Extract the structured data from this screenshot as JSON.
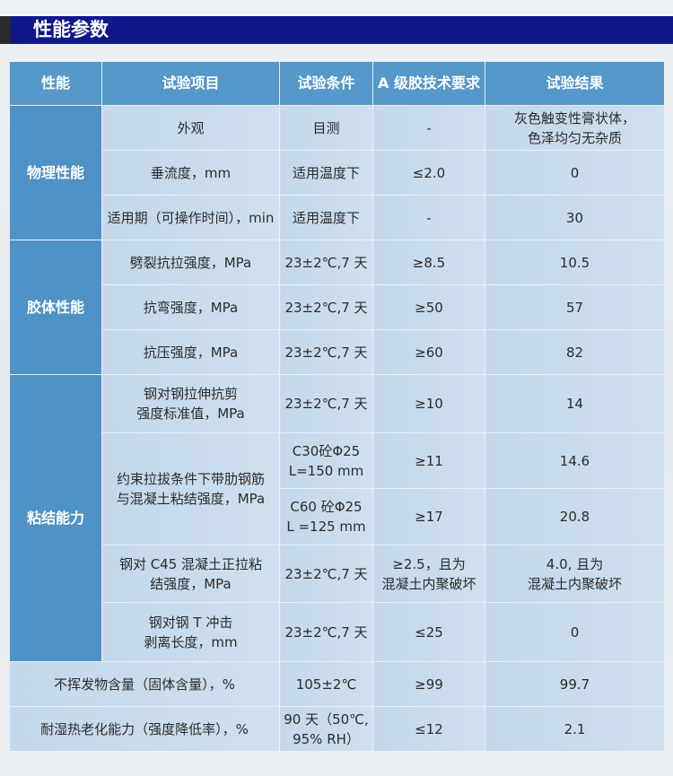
{
  "section_title": "性能参数",
  "headers": [
    "性能",
    "试验项目",
    "试验条件",
    "A 级胶技术要求",
    "试验结果"
  ],
  "groups": [
    {
      "category": "物理性能",
      "rows": [
        {
          "item": "外观",
          "condition": "目测",
          "requirement": "-",
          "result": "灰色触变性膏状体，\n色泽均匀无杂质"
        },
        {
          "item": "垂流度，mm",
          "condition": "适用温度下",
          "requirement": "≤2.0",
          "result": "0"
        },
        {
          "item": "适用期（可操作时间），min",
          "condition": "适用温度下",
          "requirement": "-",
          "result": "30"
        }
      ]
    },
    {
      "category": "胶体性能",
      "rows": [
        {
          "item": "劈裂抗拉强度，MPa",
          "condition": "23±2℃,7 天",
          "requirement": "≥8.5",
          "result": "10.5"
        },
        {
          "item": "抗弯强度，MPa",
          "condition": "23±2℃,7 天",
          "requirement": "≥50",
          "result": "57"
        },
        {
          "item": "抗压强度，MPa",
          "condition": "23±2℃,7 天",
          "requirement": "≥60",
          "result": "82"
        }
      ]
    },
    {
      "category": "粘结能力",
      "rows": [
        {
          "item": "钢对钢拉伸抗剪\n强度标准值，MPa",
          "condition": "23±2℃,7 天",
          "requirement": "≥10",
          "result": "14"
        },
        {
          "item": "约束拉拔条件下带肋钢筋\n与混凝土粘结强度，MPa",
          "condition": "C30砼Φ25\nL=150 mm",
          "requirement": "≥11",
          "result": "14.6"
        },
        {
          "condition": "C60 砼Φ25\nL =125 mm",
          "requirement": "≥17",
          "result": "20.8"
        },
        {
          "item": "钢对 C45 混凝土正拉粘\n结强度，MPa",
          "condition": "23±2℃,7 天",
          "requirement": "≥2.5，且为\n混凝土内聚破坏",
          "result": "4.0, 且为\n混凝土内聚破坏"
        },
        {
          "item": "钢对钢 T 冲击\n剥离长度，mm",
          "condition": "23±2℃,7 天",
          "requirement": "≤25",
          "result": "0"
        }
      ]
    }
  ],
  "bottom_rows": [
    {
      "item": "不挥发物含量（固体含量），%",
      "condition": "105±2℃",
      "requirement": "≥99",
      "result": "99.7"
    },
    {
      "item": "耐湿热老化能力（强度降低率），%",
      "condition": "90 天（50℃,\n95% RH）",
      "requirement": "≤12",
      "result": "2.1"
    }
  ]
}
